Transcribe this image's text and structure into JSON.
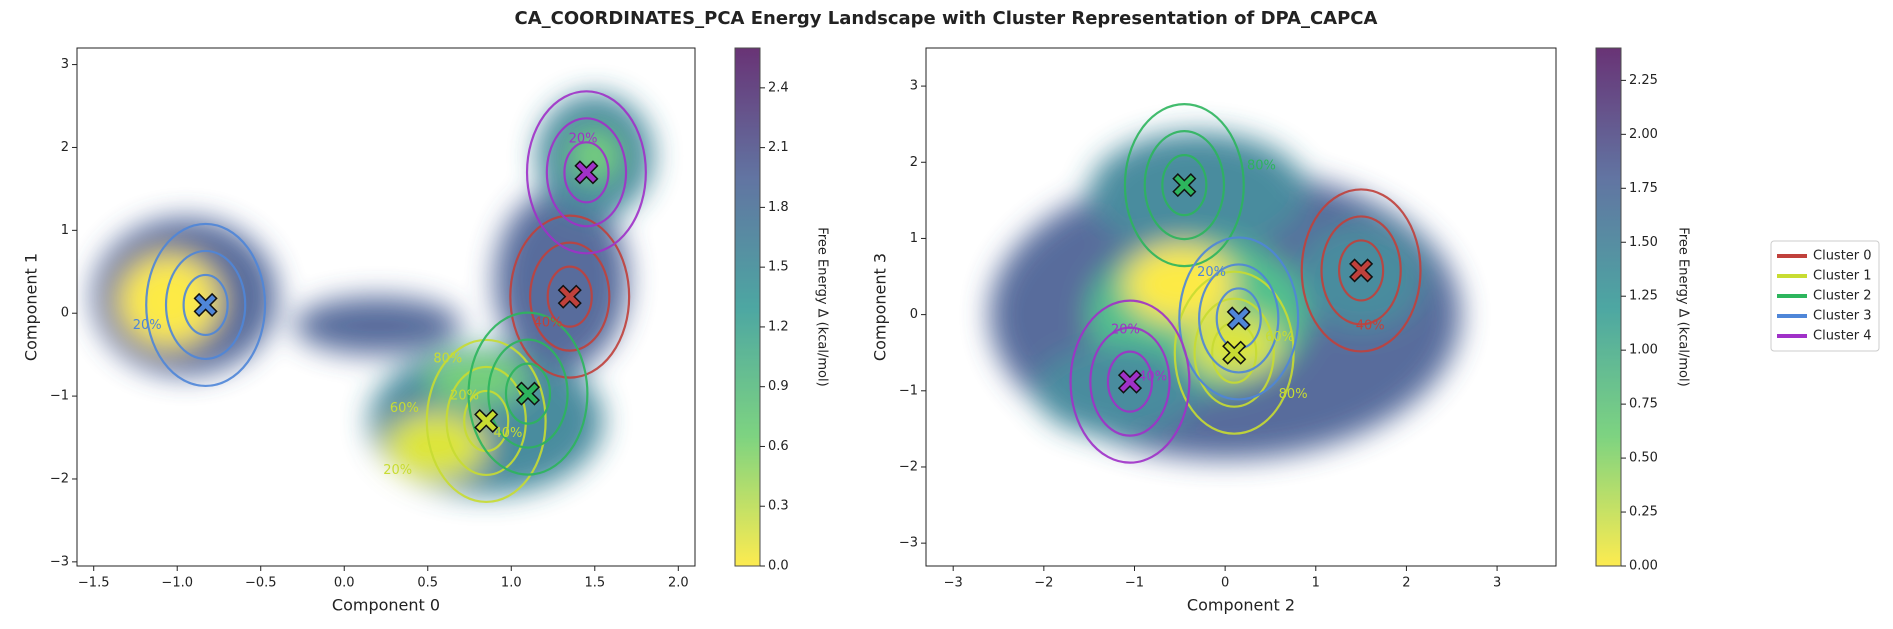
{
  "title": "CA_COORDINATES_PCA Energy Landscape with Cluster Representation of DPA_CAPCA",
  "legend": {
    "loc": "right"
  },
  "chart_data": [
    {
      "type": "scatter",
      "xlabel": "Component 0",
      "ylabel": "Component 1",
      "xlim": [
        -1.6,
        2.1
      ],
      "ylim": [
        -3.05,
        3.2
      ],
      "xticks": [
        {
          "value": -1.5,
          "label": "−1.5"
        },
        {
          "value": -1.0,
          "label": "−1.0"
        },
        {
          "value": -0.5,
          "label": "−0.5"
        },
        {
          "value": 0,
          "label": "0.0"
        },
        0.5,
        {
          "value": 1,
          "label": "1.0"
        },
        1.5,
        {
          "value": 2,
          "label": "2.0"
        }
      ],
      "yticks": [
        {
          "value": -3,
          "label": "−3"
        },
        {
          "value": -2,
          "label": "−2"
        },
        {
          "value": -1,
          "label": "−1"
        },
        0,
        1,
        2,
        3
      ],
      "colorbar": {
        "label": "Free Energy Δ (kcal/mol)",
        "clim": [
          0,
          2.6
        ],
        "ticks": [
          {
            "value": 0,
            "label": "0.0"
          },
          0.3,
          0.6,
          0.9,
          1.2,
          1.5,
          1.8,
          2.1,
          2.4
        ]
      },
      "series": [
        {
          "name": "Cluster 0",
          "color": "#c0413c",
          "x": [
            1.35
          ],
          "y": [
            0.2
          ]
        },
        {
          "name": "Cluster 1",
          "color": "#c8dc32",
          "x": [
            0.85
          ],
          "y": [
            -1.3
          ]
        },
        {
          "name": "Cluster 2",
          "color": "#2db55d",
          "x": [
            1.1
          ],
          "y": [
            -0.97
          ]
        },
        {
          "name": "Cluster 3",
          "color": "#4f86d8",
          "x": [
            -0.83
          ],
          "y": [
            0.1
          ]
        },
        {
          "name": "Cluster 4",
          "color": "#a031c8",
          "x": [
            1.45
          ],
          "y": [
            1.7
          ]
        }
      ],
      "annotations": [
        {
          "text": "20%",
          "x": -1.18,
          "y": -0.15,
          "color": "#4f86d8"
        },
        {
          "text": "80%",
          "x": 0.62,
          "y": -0.55,
          "color": "#c8dc32"
        },
        {
          "text": "60%",
          "x": 0.36,
          "y": -1.15,
          "color": "#c8dc32"
        },
        {
          "text": "20%",
          "x": 0.72,
          "y": -1.0,
          "color": "#c8dc32"
        },
        {
          "text": "20%",
          "x": 0.32,
          "y": -1.9,
          "color": "#c8dc32"
        },
        {
          "text": "40%",
          "x": 0.98,
          "y": -1.45,
          "color": "#c8dc32"
        },
        {
          "text": "40%",
          "x": 1.22,
          "y": -0.12,
          "color": "#c0413c"
        },
        {
          "text": "20%",
          "x": 1.43,
          "y": 2.1,
          "color": "#a031c8"
        }
      ]
    },
    {
      "type": "scatter",
      "xlabel": "Component 2",
      "ylabel": "Component 3",
      "xlim": [
        -3.3,
        3.65
      ],
      "ylim": [
        -3.3,
        3.5
      ],
      "xticks": [
        {
          "value": -3,
          "label": "−3"
        },
        {
          "value": -2,
          "label": "−2"
        },
        {
          "value": -1,
          "label": "−1"
        },
        0,
        1,
        2,
        3
      ],
      "yticks": [
        {
          "value": -3,
          "label": "−3"
        },
        {
          "value": -2,
          "label": "−2"
        },
        {
          "value": -1,
          "label": "−1"
        },
        0,
        1,
        2,
        3
      ],
      "colorbar": {
        "label": "Free Energy Δ (kcal/mol)",
        "clim": [
          0,
          2.4
        ],
        "ticks": [
          {
            "value": 0,
            "label": "0.00"
          },
          {
            "value": 0.25,
            "label": "0.25"
          },
          {
            "value": 0.5,
            "label": "0.50"
          },
          {
            "value": 0.75,
            "label": "0.75"
          },
          {
            "value": 1,
            "label": "1.00"
          },
          {
            "value": 1.25,
            "label": "1.25"
          },
          {
            "value": 1.5,
            "label": "1.50"
          },
          {
            "value": 1.75,
            "label": "1.75"
          },
          {
            "value": 2,
            "label": "2.00"
          },
          {
            "value": 2.25,
            "label": "2.25"
          }
        ]
      },
      "series": [
        {
          "name": "Cluster 0",
          "color": "#c0413c",
          "x": [
            1.5
          ],
          "y": [
            0.58
          ]
        },
        {
          "name": "Cluster 1",
          "color": "#c8dc32",
          "x": [
            0.1
          ],
          "y": [
            -0.5
          ]
        },
        {
          "name": "Cluster 2",
          "color": "#2db55d",
          "x": [
            -0.45
          ],
          "y": [
            1.7
          ]
        },
        {
          "name": "Cluster 3",
          "color": "#4f86d8",
          "x": [
            0.15
          ],
          "y": [
            -0.05
          ]
        },
        {
          "name": "Cluster 4",
          "color": "#a031c8",
          "x": [
            -1.05
          ],
          "y": [
            -0.88
          ]
        }
      ],
      "annotations": [
        {
          "text": "20%",
          "x": -0.15,
          "y": 0.55,
          "color": "#4f86d8"
        },
        {
          "text": "80%",
          "x": 0.4,
          "y": 1.95,
          "color": "#2db55d"
        },
        {
          "text": "40%",
          "x": 1.6,
          "y": -0.15,
          "color": "#c0413c"
        },
        {
          "text": "20%",
          "x": -1.1,
          "y": -0.2,
          "color": "#a031c8"
        },
        {
          "text": "40%",
          "x": -0.8,
          "y": -0.82,
          "color": "#a031c8"
        },
        {
          "text": "80%",
          "x": 0.75,
          "y": -1.05,
          "color": "#c8dc32"
        },
        {
          "text": "60%",
          "x": 0.6,
          "y": -0.3,
          "color": "#c8dc32"
        }
      ]
    }
  ]
}
